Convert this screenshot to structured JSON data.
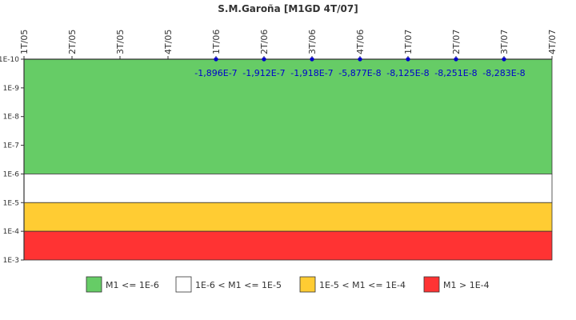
{
  "chart_data": {
    "type": "line",
    "title": "S.M.Garoña [M1GD 4T/07]",
    "y_scale": "log",
    "y_axis_inverted": true,
    "ylim": [
      1e-10,
      0.001
    ],
    "y_ticks": [
      {
        "value": 1e-10,
        "label": "1E-10"
      },
      {
        "value": 1e-09,
        "label": "1E-9"
      },
      {
        "value": 1e-08,
        "label": "1E-8"
      },
      {
        "value": 1e-07,
        "label": "1E-7"
      },
      {
        "value": 1e-06,
        "label": "1E-6"
      },
      {
        "value": 1e-05,
        "label": "1E-5"
      },
      {
        "value": 0.0001,
        "label": "1E-4"
      },
      {
        "value": 0.001,
        "label": "1E-3"
      }
    ],
    "x_categories": [
      "1T/05",
      "2T/05",
      "3T/05",
      "4T/05",
      "1T/06",
      "2T/06",
      "3T/06",
      "4T/06",
      "1T/07",
      "2T/07",
      "3T/07",
      "4T/07"
    ],
    "series": [
      {
        "categories": [
          "1T/06",
          "2T/06",
          "3T/06",
          "4T/06",
          "1T/07",
          "2T/07",
          "3T/07"
        ],
        "values": [
          -1.896e-07,
          -1.912e-07,
          -1.918e-07,
          -5.877e-08,
          -8.125e-08,
          -8.251e-08,
          -8.283e-08
        ],
        "labels": [
          "-1,896E-7",
          "-1,912E-7",
          "-1,918E-7",
          "-5,877E-8",
          "-8,125E-8",
          "-8,251E-8",
          "-8,283E-8"
        ],
        "color": "#0000cc"
      }
    ],
    "bands": [
      {
        "from": 1e-10,
        "to": 1e-06,
        "color": "#66cc66",
        "label": "M1 <= 1E-6"
      },
      {
        "from": 1e-06,
        "to": 1e-05,
        "color": "#ffffff",
        "label": "1E-6 < M1 <= 1E-5"
      },
      {
        "from": 1e-05,
        "to": 0.0001,
        "color": "#ffcc33",
        "label": "1E-5 < M1 <= 1E-4"
      },
      {
        "from": 0.0001,
        "to": 0.001,
        "color": "#ff3333",
        "label": "M1 > 1E-4"
      }
    ],
    "legend_position": "bottom",
    "grid": false
  }
}
